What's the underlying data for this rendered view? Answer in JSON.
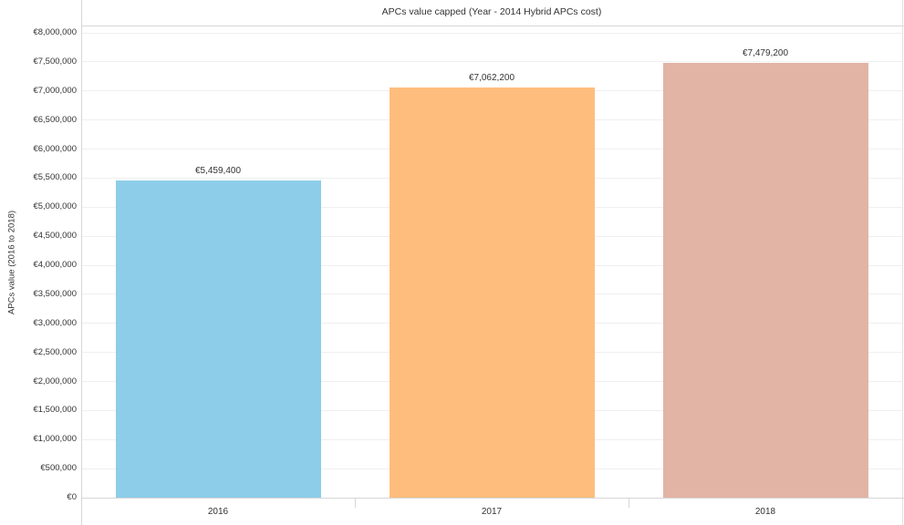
{
  "chart_data": {
    "type": "bar",
    "title": "APCs value capped (Year - 2014 Hybrid APCs cost)",
    "xlabel": "",
    "ylabel": "APCs value (2016 to 2018)",
    "categories": [
      "2016",
      "2017",
      "2018"
    ],
    "values": [
      5459400,
      7062200,
      7479200
    ],
    "bar_labels": [
      "€5,459,400",
      "€7,062,200",
      "€7,479,200"
    ],
    "bar_colors": [
      "#8DCDE9",
      "#FEBD7D",
      "#E2B4A6"
    ],
    "ylim": [
      0,
      8000000
    ],
    "ytick_step": 500000,
    "ytick_labels": [
      "€0",
      "€500,000",
      "€1,000,000",
      "€1,500,000",
      "€2,000,000",
      "€2,500,000",
      "€3,000,000",
      "€3,500,000",
      "€4,000,000",
      "€4,500,000",
      "€5,000,000",
      "€5,500,000",
      "€6,000,000",
      "€6,500,000",
      "€7,000,000",
      "€7,500,000",
      "€8,000,000"
    ],
    "grid": "horizontal",
    "legend": "none",
    "currency_symbol": "€"
  }
}
